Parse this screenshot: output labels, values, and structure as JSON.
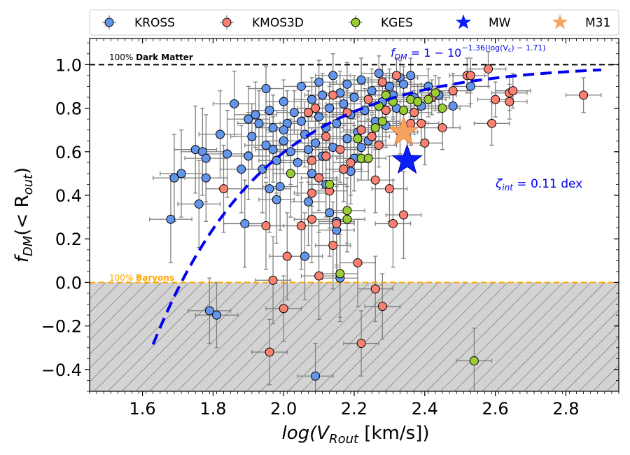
{
  "chart_data": {
    "type": "scatter",
    "xlabel_main": "log(V",
    "xlabel_sub": "Rout",
    "xlabel_unit": " [km/s])",
    "ylabel_main": "f",
    "ylabel_sub": "DM",
    "ylabel_rest": "(< R",
    "ylabel_sub2": "out",
    "ylabel_close": ")",
    "xlim": [
      1.45,
      2.95
    ],
    "ylim": [
      -0.5,
      1.12
    ],
    "x_ticks": [
      1.6,
      1.8,
      2.0,
      2.2,
      2.4,
      2.6,
      2.8
    ],
    "x_tick_labels": [
      "1.6",
      "1.8",
      "2.0",
      "2.2",
      "2.4",
      "2.6",
      "2.8"
    ],
    "y_ticks": [
      -0.4,
      -0.2,
      0.0,
      0.2,
      0.4,
      0.6,
      0.8,
      1.0
    ],
    "y_tick_labels": [
      "−0.4",
      "−0.2",
      "0.0",
      "0.2",
      "0.4",
      "0.6",
      "0.8",
      "1.0"
    ],
    "dark_matter_line_y": 1.0,
    "baryon_line_y": 0.0,
    "annotation_dm_prefix": "100%",
    "annotation_dm_bold": "Dark Matter",
    "annotation_baryon_prefix": "100%",
    "annotation_baryon_bold": "Baryons",
    "formula_lhs": "f",
    "formula_lhs_sub": "DM",
    "formula_rhs": " = 1 − 10",
    "formula_exp": "−1.36(log(V",
    "formula_exp_sub": "c",
    "formula_exp_end": ") − 1.71)",
    "scatter_label": "ζ",
    "scatter_label_sub": "int",
    "scatter_value": " =  0.11 dex",
    "fit": {
      "a": 1.36,
      "b": 1.71,
      "x_start": 1.63,
      "x_end": 2.9
    },
    "colors": {
      "kross": "#6495ed",
      "kmos3d": "#fa8072",
      "kges": "#9acd32",
      "mw": "#0a1efa",
      "m31": "#f4a460",
      "fit": "#0000ee",
      "baryon": "#ffa500",
      "errorbar": "#808080"
    },
    "legend": [
      {
        "name": "KROSS",
        "marker": "circle",
        "color": "#6495ed"
      },
      {
        "name": "KMOS3D",
        "marker": "circle",
        "color": "#fa8072"
      },
      {
        "name": "KGES",
        "marker": "circle",
        "color": "#9acd32"
      },
      {
        "name": "MW",
        "marker": "star",
        "color": "#0a1efa"
      },
      {
        "name": "M31",
        "marker": "star",
        "color": "#f4a460"
      }
    ],
    "stars": [
      {
        "name": "M31",
        "x": 2.34,
        "y": 0.69,
        "color": "#f4a460"
      },
      {
        "name": "MW",
        "x": 2.35,
        "y": 0.56,
        "color": "#0a1efa"
      }
    ],
    "series": [
      {
        "name": "KROSS",
        "points": [
          [
            1.68,
            0.29,
            0.06,
            0.2
          ],
          [
            1.69,
            0.48,
            0.06,
            0.2
          ],
          [
            1.71,
            0.5,
            0.06,
            0.2
          ],
          [
            1.75,
            0.61,
            0.06,
            0.2
          ],
          [
            1.76,
            0.36,
            0.06,
            0.2
          ],
          [
            1.77,
            0.6,
            0.06,
            0.2
          ],
          [
            1.78,
            0.57,
            0.06,
            0.2
          ],
          [
            1.78,
            0.48,
            0.06,
            0.2
          ],
          [
            1.79,
            -0.13,
            0.06,
            0.15
          ],
          [
            1.81,
            -0.15,
            0.06,
            0.15
          ],
          [
            1.82,
            0.68,
            0.06,
            0.2
          ],
          [
            1.84,
            0.59,
            0.06,
            0.2
          ],
          [
            1.86,
            0.82,
            0.06,
            0.15
          ],
          [
            1.88,
            0.52,
            0.06,
            0.2
          ],
          [
            1.89,
            0.27,
            0.06,
            0.2
          ],
          [
            1.9,
            0.58,
            0.06,
            0.2
          ],
          [
            1.9,
            0.75,
            0.06,
            0.15
          ],
          [
            1.91,
            0.67,
            0.06,
            0.15
          ],
          [
            1.92,
            0.77,
            0.06,
            0.15
          ],
          [
            1.93,
            0.73,
            0.06,
            0.15
          ],
          [
            1.94,
            0.52,
            0.06,
            0.2
          ],
          [
            1.95,
            0.63,
            0.06,
            0.15
          ],
          [
            1.95,
            0.89,
            0.05,
            0.1
          ],
          [
            1.96,
            0.79,
            0.05,
            0.1
          ],
          [
            1.96,
            0.43,
            0.06,
            0.2
          ],
          [
            1.97,
            0.71,
            0.05,
            0.15
          ],
          [
            1.98,
            0.56,
            0.05,
            0.15
          ],
          [
            1.98,
            0.38,
            0.05,
            0.2
          ],
          [
            1.99,
            0.44,
            0.05,
            0.2
          ],
          [
            2.0,
            0.65,
            0.05,
            0.15
          ],
          [
            2.0,
            0.83,
            0.05,
            0.1
          ],
          [
            2.01,
            0.73,
            0.05,
            0.15
          ],
          [
            2.02,
            0.6,
            0.05,
            0.15
          ],
          [
            2.03,
            0.78,
            0.05,
            0.1
          ],
          [
            2.04,
            0.55,
            0.05,
            0.15
          ],
          [
            2.05,
            0.74,
            0.05,
            0.1
          ],
          [
            2.05,
            0.9,
            0.05,
            0.1
          ],
          [
            2.06,
            0.68,
            0.05,
            0.15
          ],
          [
            2.06,
            0.12,
            0.05,
            0.2
          ],
          [
            2.07,
            0.37,
            0.05,
            0.2
          ],
          [
            2.08,
            0.84,
            0.05,
            0.1
          ],
          [
            2.08,
            0.5,
            0.05,
            0.15
          ],
          [
            2.09,
            0.64,
            0.05,
            0.15
          ],
          [
            2.09,
            -0.43,
            0.05,
            0.15
          ],
          [
            2.1,
            0.76,
            0.05,
            0.1
          ],
          [
            2.1,
            0.92,
            0.05,
            0.1
          ],
          [
            2.11,
            0.58,
            0.05,
            0.15
          ],
          [
            2.11,
            0.86,
            0.05,
            0.1
          ],
          [
            2.12,
            0.71,
            0.05,
            0.1
          ],
          [
            2.13,
            0.32,
            0.05,
            0.2
          ],
          [
            2.13,
            0.8,
            0.05,
            0.1
          ],
          [
            2.14,
            0.62,
            0.05,
            0.15
          ],
          [
            2.14,
            0.95,
            0.05,
            0.1
          ],
          [
            2.15,
            0.28,
            0.05,
            0.2
          ],
          [
            2.15,
            0.73,
            0.05,
            0.1
          ],
          [
            2.16,
            0.87,
            0.05,
            0.1
          ],
          [
            2.16,
            0.02,
            0.05,
            0.2
          ],
          [
            2.17,
            0.52,
            0.05,
            0.15
          ],
          [
            2.17,
            0.82,
            0.05,
            0.1
          ],
          [
            2.18,
            0.66,
            0.05,
            0.1
          ],
          [
            2.18,
            0.91,
            0.05,
            0.1
          ],
          [
            2.19,
            0.77,
            0.05,
            0.1
          ],
          [
            2.2,
            0.57,
            0.05,
            0.15
          ],
          [
            2.2,
            0.85,
            0.05,
            0.1
          ],
          [
            2.21,
            0.69,
            0.05,
            0.1
          ],
          [
            2.22,
            0.93,
            0.05,
            0.1
          ],
          [
            2.23,
            0.79,
            0.05,
            0.1
          ],
          [
            2.24,
            0.65,
            0.05,
            0.1
          ],
          [
            2.25,
            0.88,
            0.05,
            0.1
          ],
          [
            2.26,
            0.74,
            0.05,
            0.1
          ],
          [
            2.27,
            0.96,
            0.05,
            0.08
          ],
          [
            2.28,
            0.83,
            0.05,
            0.1
          ],
          [
            2.29,
            0.72,
            0.05,
            0.1
          ],
          [
            2.3,
            0.9,
            0.05,
            0.08
          ],
          [
            2.31,
            0.86,
            0.05,
            0.1
          ],
          [
            2.32,
            0.8,
            0.05,
            0.1
          ],
          [
            2.33,
            0.94,
            0.05,
            0.08
          ],
          [
            2.34,
            0.91,
            0.05,
            0.08
          ],
          [
            2.36,
            0.95,
            0.05,
            0.08
          ],
          [
            2.37,
            0.85,
            0.05,
            0.1
          ],
          [
            2.39,
            0.81,
            0.05,
            0.1
          ],
          [
            2.41,
            0.9,
            0.05,
            0.08
          ],
          [
            2.44,
            0.86,
            0.05,
            0.08
          ],
          [
            2.48,
            0.81,
            0.05,
            0.1
          ],
          [
            2.53,
            0.9,
            0.05,
            0.08
          ],
          [
            2.0,
            0.7,
            0.05,
            0.15
          ],
          [
            1.97,
            0.61,
            0.05,
            0.15
          ],
          [
            2.12,
            0.45,
            0.05,
            0.15
          ],
          [
            2.15,
            0.24,
            0.05,
            0.2
          ],
          [
            2.19,
            0.51,
            0.05,
            0.15
          ],
          [
            2.22,
            0.62,
            0.05,
            0.1
          ],
          [
            2.07,
            0.61,
            0.05,
            0.15
          ]
        ]
      },
      {
        "name": "KMOS3D",
        "points": [
          [
            1.83,
            0.43,
            0.05,
            0.2
          ],
          [
            1.95,
            0.26,
            0.05,
            0.2
          ],
          [
            1.96,
            -0.32,
            0.05,
            0.15
          ],
          [
            1.97,
            0.01,
            0.05,
            0.2
          ],
          [
            2.0,
            -0.12,
            0.05,
            0.15
          ],
          [
            2.01,
            0.12,
            0.05,
            0.2
          ],
          [
            2.05,
            0.26,
            0.05,
            0.2
          ],
          [
            2.08,
            0.29,
            0.05,
            0.2
          ],
          [
            2.08,
            0.41,
            0.05,
            0.15
          ],
          [
            2.08,
            0.56,
            0.05,
            0.15
          ],
          [
            2.09,
            0.8,
            0.05,
            0.1
          ],
          [
            2.1,
            0.03,
            0.05,
            0.2
          ],
          [
            2.1,
            0.48,
            0.05,
            0.15
          ],
          [
            2.12,
            0.67,
            0.05,
            0.1
          ],
          [
            2.13,
            0.42,
            0.05,
            0.15
          ],
          [
            2.14,
            0.17,
            0.05,
            0.2
          ],
          [
            2.14,
            0.86,
            0.05,
            0.1
          ],
          [
            2.15,
            0.27,
            0.05,
            0.2
          ],
          [
            2.16,
            0.61,
            0.05,
            0.15
          ],
          [
            2.17,
            0.52,
            0.05,
            0.15
          ],
          [
            2.18,
            0.78,
            0.05,
            0.1
          ],
          [
            2.19,
            0.55,
            0.05,
            0.15
          ],
          [
            2.21,
            0.09,
            0.05,
            0.2
          ],
          [
            2.22,
            -0.28,
            0.05,
            0.15
          ],
          [
            2.22,
            0.7,
            0.05,
            0.1
          ],
          [
            2.24,
            0.84,
            0.05,
            0.1
          ],
          [
            2.26,
            -0.03,
            0.05,
            0.15
          ],
          [
            2.26,
            0.47,
            0.05,
            0.15
          ],
          [
            2.27,
            0.63,
            0.05,
            0.1
          ],
          [
            2.28,
            -0.11,
            0.05,
            0.15
          ],
          [
            2.29,
            0.79,
            0.05,
            0.1
          ],
          [
            2.3,
            0.43,
            0.05,
            0.15
          ],
          [
            2.31,
            0.27,
            0.05,
            0.2
          ],
          [
            2.32,
            0.95,
            0.05,
            0.08
          ],
          [
            2.34,
            0.31,
            0.05,
            0.2
          ],
          [
            2.36,
            0.73,
            0.05,
            0.1
          ],
          [
            2.37,
            0.78,
            0.05,
            0.1
          ],
          [
            2.39,
            0.73,
            0.05,
            0.1
          ],
          [
            2.4,
            0.64,
            0.05,
            0.1
          ],
          [
            2.42,
            0.85,
            0.05,
            0.08
          ],
          [
            2.45,
            0.71,
            0.05,
            0.1
          ],
          [
            2.48,
            0.88,
            0.05,
            0.08
          ],
          [
            2.52,
            0.95,
            0.05,
            0.08
          ],
          [
            2.53,
            0.95,
            0.05,
            0.08
          ],
          [
            2.58,
            0.98,
            0.05,
            0.08
          ],
          [
            2.59,
            0.73,
            0.05,
            0.1
          ],
          [
            2.6,
            0.84,
            0.05,
            0.08
          ],
          [
            2.64,
            0.83,
            0.05,
            0.08
          ],
          [
            2.64,
            0.87,
            0.05,
            0.08
          ],
          [
            2.65,
            0.88,
            0.05,
            0.08
          ],
          [
            2.85,
            0.86,
            0.05,
            0.08
          ],
          [
            2.07,
            0.78,
            0.05,
            0.1
          ],
          [
            2.12,
            0.58,
            0.05,
            0.15
          ],
          [
            2.25,
            0.67,
            0.05,
            0.1
          ],
          [
            2.28,
            0.92,
            0.05,
            0.08
          ],
          [
            2.33,
            0.69,
            0.05,
            0.1
          ]
        ]
      },
      {
        "name": "KGES",
        "points": [
          [
            2.02,
            0.5,
            0.05,
            0.2
          ],
          [
            2.13,
            0.45,
            0.05,
            0.2
          ],
          [
            2.16,
            0.04,
            0.05,
            0.2
          ],
          [
            2.18,
            0.29,
            0.05,
            0.15
          ],
          [
            2.18,
            0.33,
            0.05,
            0.15
          ],
          [
            2.21,
            0.66,
            0.05,
            0.1
          ],
          [
            2.22,
            0.57,
            0.05,
            0.1
          ],
          [
            2.24,
            0.57,
            0.05,
            0.1
          ],
          [
            2.26,
            0.71,
            0.05,
            0.1
          ],
          [
            2.27,
            0.81,
            0.05,
            0.1
          ],
          [
            2.28,
            0.74,
            0.05,
            0.1
          ],
          [
            2.29,
            0.86,
            0.05,
            0.1
          ],
          [
            2.31,
            0.83,
            0.05,
            0.08
          ],
          [
            2.34,
            0.79,
            0.05,
            0.08
          ],
          [
            2.36,
            0.84,
            0.05,
            0.08
          ],
          [
            2.38,
            0.83,
            0.05,
            0.08
          ],
          [
            2.41,
            0.84,
            0.05,
            0.08
          ],
          [
            2.43,
            0.87,
            0.05,
            0.08
          ],
          [
            2.45,
            0.8,
            0.05,
            0.08
          ],
          [
            2.54,
            -0.36,
            0.05,
            0.15
          ]
        ]
      }
    ]
  }
}
